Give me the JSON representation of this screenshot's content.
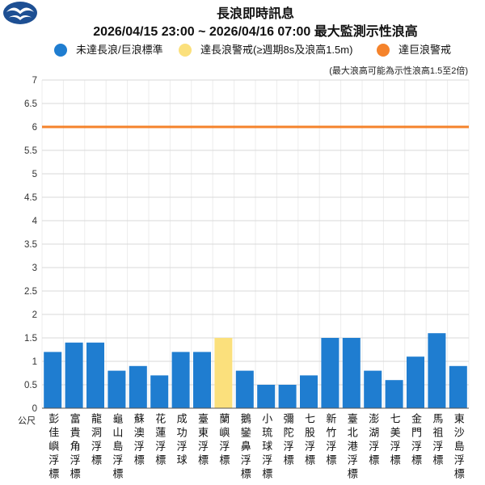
{
  "logo": {
    "icon": "cwa-logo-icon"
  },
  "chart_data": {
    "type": "bar",
    "title": "長浪即時訊息",
    "subtitle": "2026/04/15 23:00 ~ 2026/04/16 07:00 最大監測示性浪高",
    "note": "(最大浪高可能為示性浪高1.5至2倍)",
    "xlabel": "",
    "ylabel": "公尺",
    "ylim": [
      0,
      7
    ],
    "yticks": [
      0,
      0.5,
      1,
      1.5,
      2,
      2.5,
      3,
      3.5,
      4,
      4.5,
      5,
      5.5,
      6,
      6.5,
      7
    ],
    "grid": true,
    "legend": {
      "position": "top",
      "items": [
        {
          "label": "未達長浪/巨浪標準",
          "color": "#1f7dd0"
        },
        {
          "label": "達長浪警戒(≥週期8s及浪高1.5m)",
          "color": "#fbe07c"
        },
        {
          "label": "達巨浪警戒",
          "color": "#f5832b"
        }
      ]
    },
    "reference_lines": [
      {
        "y": 6,
        "color": "#f5832b"
      }
    ],
    "categories": [
      "彭佳嶼浮標",
      "富貴角浮標",
      "龍洞浮標",
      "龜山島浮標",
      "蘇澳浮標",
      "花蓮浮標",
      "成功浮球",
      "臺東浮標",
      "蘭嶼浮標",
      "鵝鑾鼻浮標",
      "小琉球浮標",
      "彌陀浮標",
      "七股浮標",
      "新竹浮標",
      "臺北港浮標",
      "澎湖浮標",
      "七美浮標",
      "金門浮標",
      "馬祖浮標",
      "東沙島浮標"
    ],
    "values": [
      1.2,
      1.4,
      1.4,
      0.8,
      0.9,
      0.7,
      1.2,
      1.2,
      1.5,
      0.8,
      0.5,
      0.5,
      0.7,
      1.5,
      1.5,
      0.8,
      0.6,
      1.1,
      1.6,
      0.9
    ],
    "bar_colors": [
      "#1f7dd0",
      "#1f7dd0",
      "#1f7dd0",
      "#1f7dd0",
      "#1f7dd0",
      "#1f7dd0",
      "#1f7dd0",
      "#1f7dd0",
      "#fbe07c",
      "#1f7dd0",
      "#1f7dd0",
      "#1f7dd0",
      "#1f7dd0",
      "#1f7dd0",
      "#1f7dd0",
      "#1f7dd0",
      "#1f7dd0",
      "#1f7dd0",
      "#1f7dd0",
      "#1f7dd0"
    ]
  }
}
